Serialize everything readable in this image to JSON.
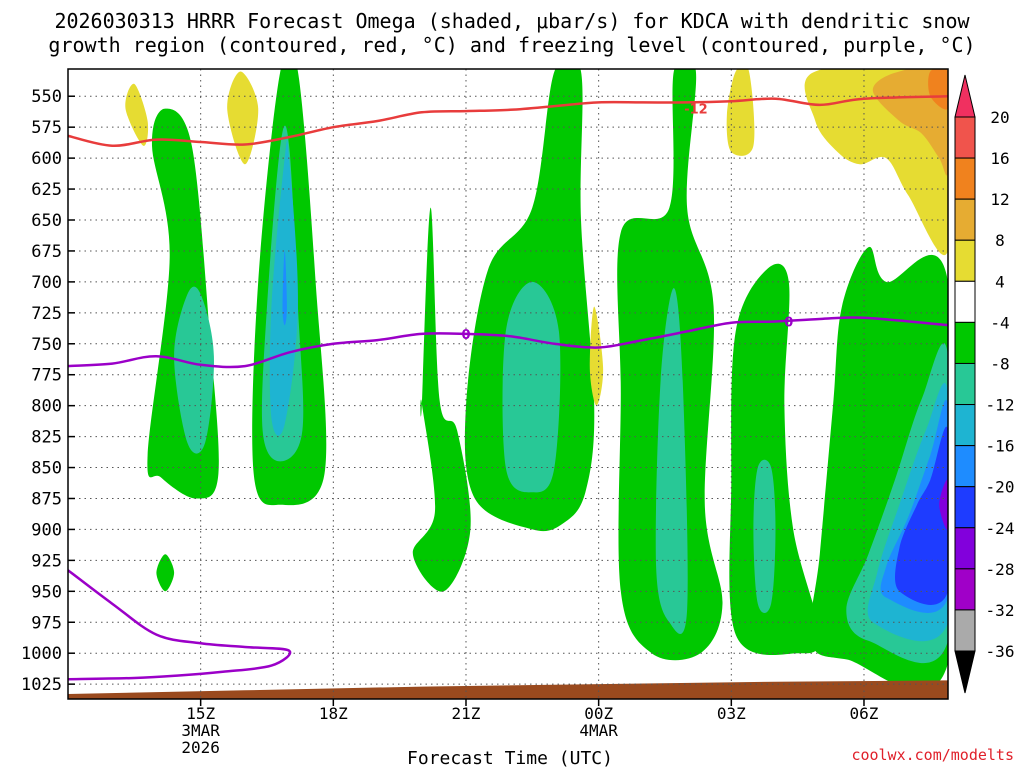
{
  "chart_data": {
    "type": "heatmap",
    "title_line1": "2026030313 HRRR Forecast Omega (shaded, μbar/s) for KDCA with dendritic snow",
    "title_line2": "growth region (contoured, red, °C) and freezing level (contoured, purple, °C)",
    "xlabel": "Forecast Time (UTC)",
    "x_ticks": [
      {
        "label": "15Z",
        "sub1": "3MAR",
        "sub2": "2026",
        "hour": 15
      },
      {
        "label": "18Z",
        "sub1": "",
        "sub2": "",
        "hour": 18
      },
      {
        "label": "21Z",
        "sub1": "",
        "sub2": "",
        "hour": 21
      },
      {
        "label": "00Z",
        "sub1": "4MAR",
        "sub2": "",
        "hour": 24
      },
      {
        "label": "03Z",
        "sub1": "",
        "sub2": "",
        "hour": 27
      },
      {
        "label": "06Z",
        "sub1": "",
        "sub2": "",
        "hour": 30
      }
    ],
    "x_range_hours": [
      12,
      31.9
    ],
    "y_ticks": [
      550,
      575,
      600,
      625,
      650,
      675,
      700,
      725,
      750,
      775,
      800,
      825,
      850,
      875,
      900,
      925,
      950,
      975,
      1000,
      1025
    ],
    "y_range_hpa": [
      528,
      1037
    ],
    "colorbar_ticks": [
      "20",
      "16",
      "12",
      "8",
      "4",
      "-4",
      "-8",
      "-12",
      "-16",
      "-20",
      "-24",
      "-28",
      "-32",
      "-36"
    ],
    "colorbar_colors": [
      "#f03060",
      "#f0544c",
      "#f0821e",
      "#e6ac32",
      "#e6dc32",
      "#ffffff",
      "#00c800",
      "#28c896",
      "#1eb4d2",
      "#1e8cff",
      "#1e3cff",
      "#8200dc",
      "#a000c8",
      "#aaaaaa",
      "#000000"
    ],
    "levels": [
      {
        "name": "neg4",
        "color": "#00c800",
        "regions": [
          [
            [
              14.2,
              560
            ],
            [
              14.8,
              590
            ],
            [
              15.2,
              740
            ],
            [
              15.4,
              855
            ],
            [
              14.9,
              875
            ],
            [
              14.1,
              858
            ],
            [
              13.8,
              840
            ],
            [
              14.3,
              680
            ],
            [
              13.9,
              590
            ]
          ],
          [
            [
              16.8,
              530
            ],
            [
              16.3,
              700
            ],
            [
              16.2,
              855
            ],
            [
              16.8,
              880
            ],
            [
              17.8,
              855
            ],
            [
              17.6,
              700
            ],
            [
              17.2,
              530
            ]
          ],
          [
            [
              20.0,
              798
            ],
            [
              20.3,
              885
            ],
            [
              19.8,
              920
            ],
            [
              20.5,
              950
            ],
            [
              21.1,
              900
            ],
            [
              20.8,
              820
            ],
            [
              20.4,
              795
            ],
            [
              20.2,
              640
            ],
            [
              20.0,
              800
            ]
          ],
          [
            [
              23.0,
              530
            ],
            [
              22.5,
              640
            ],
            [
              21.5,
              690
            ],
            [
              21.0,
              800
            ],
            [
              21.2,
              875
            ],
            [
              22.5,
              900
            ],
            [
              23.2,
              895
            ],
            [
              23.7,
              870
            ],
            [
              23.9,
              800
            ],
            [
              23.6,
              650
            ],
            [
              23.6,
              530
            ]
          ],
          [
            [
              25.7,
              530
            ],
            [
              25.6,
              640
            ],
            [
              24.5,
              660
            ],
            [
              24.5,
              790
            ],
            [
              24.5,
              950
            ],
            [
              25.2,
              1000
            ],
            [
              26.3,
              1000
            ],
            [
              26.8,
              960
            ],
            [
              26.4,
              880
            ],
            [
              26.6,
              720
            ],
            [
              26.0,
              640
            ],
            [
              26.2,
              530
            ]
          ],
          [
            [
              27.8,
              690
            ],
            [
              27.1,
              740
            ],
            [
              27.0,
              860
            ],
            [
              27.1,
              985
            ],
            [
              28.5,
              1000
            ],
            [
              29.0,
              985
            ],
            [
              28.4,
              900
            ],
            [
              28.2,
              800
            ],
            [
              28.3,
              700
            ]
          ],
          [
            [
              30.1,
              672
            ],
            [
              29.5,
              720
            ],
            [
              29.3,
              800
            ],
            [
              29.0,
              920
            ],
            [
              28.8,
              990
            ],
            [
              29.6,
              1005
            ],
            [
              31.9,
              1008
            ],
            [
              31.9,
              700
            ],
            [
              30.5,
              700
            ]
          ],
          [
            [
              14.2,
              920
            ],
            [
              14.0,
              935
            ],
            [
              14.2,
              950
            ],
            [
              14.4,
              935
            ]
          ]
        ]
      },
      {
        "name": "neg8",
        "color": "#28c896",
        "regions": [
          [
            [
              14.7,
              710
            ],
            [
              14.4,
              760
            ],
            [
              14.7,
              830
            ],
            [
              15.1,
              830
            ],
            [
              15.3,
              760
            ],
            [
              15.0,
              710
            ]
          ],
          [
            [
              16.8,
              590
            ],
            [
              16.5,
              720
            ],
            [
              16.4,
              820
            ],
            [
              16.8,
              845
            ],
            [
              17.3,
              820
            ],
            [
              17.2,
              720
            ],
            [
              17.0,
              590
            ]
          ],
          [
            [
              22.5,
              700
            ],
            [
              21.9,
              740
            ],
            [
              21.9,
              850
            ],
            [
              22.5,
              870
            ],
            [
              23.0,
              850
            ],
            [
              23.1,
              740
            ]
          ],
          [
            [
              25.7,
              705
            ],
            [
              25.4,
              780
            ],
            [
              25.3,
              930
            ],
            [
              25.6,
              975
            ],
            [
              26.0,
              965
            ],
            [
              25.9,
              780
            ]
          ],
          [
            [
              27.6,
              850
            ],
            [
              27.5,
              900
            ],
            [
              27.6,
              960
            ],
            [
              27.9,
              960
            ],
            [
              28.0,
              900
            ],
            [
              27.9,
              850
            ]
          ],
          [
            [
              31.9,
              760
            ],
            [
              31.3,
              795
            ],
            [
              30.7,
              860
            ],
            [
              30.1,
              920
            ],
            [
              29.6,
              965
            ],
            [
              30.1,
              990
            ],
            [
              31.9,
              990
            ]
          ]
        ]
      },
      {
        "name": "neg12",
        "color": "#1eb4d2",
        "regions": [
          [
            [
              16.9,
              600
            ],
            [
              16.6,
              720
            ],
            [
              16.6,
              810
            ],
            [
              16.9,
              815
            ],
            [
              17.2,
              720
            ],
            [
              17.0,
              600
            ]
          ],
          [
            [
              31.9,
              790
            ],
            [
              31.4,
              820
            ],
            [
              30.8,
              880
            ],
            [
              30.3,
              935
            ],
            [
              30.2,
              975
            ],
            [
              31.9,
              975
            ]
          ]
        ]
      },
      {
        "name": "neg16",
        "color": "#1e8cff",
        "regions": [
          [
            [
              16.9,
              675
            ],
            [
              16.85,
              720
            ],
            [
              16.9,
              735
            ],
            [
              16.95,
              720
            ]
          ],
          [
            [
              31.9,
              800
            ],
            [
              31.5,
              840
            ],
            [
              31.0,
              890
            ],
            [
              30.5,
              930
            ],
            [
              30.5,
              955
            ],
            [
              31.9,
              955
            ]
          ]
        ]
      },
      {
        "name": "neg20",
        "color": "#1e3cff",
        "regions": [
          [
            [
              31.9,
              820
            ],
            [
              31.5,
              860
            ],
            [
              31.2,
              880
            ],
            [
              30.8,
              915
            ],
            [
              30.8,
              950
            ],
            [
              31.9,
              950
            ]
          ]
        ]
      },
      {
        "name": "neg24",
        "color": "#8200dc",
        "regions": [
          [
            [
              31.9,
              860
            ],
            [
              31.7,
              880
            ],
            [
              31.9,
              900
            ]
          ]
        ]
      },
      {
        "name": "pos4",
        "color": "#e6dc32",
        "regions": [
          [
            [
              13.5,
              540
            ],
            [
              13.3,
              560
            ],
            [
              13.7,
              590
            ],
            [
              13.8,
              570
            ]
          ],
          [
            [
              15.9,
              530
            ],
            [
              15.6,
              560
            ],
            [
              16.0,
              605
            ],
            [
              16.3,
              560
            ]
          ],
          [
            [
              23.9,
              720
            ],
            [
              23.8,
              770
            ],
            [
              23.95,
              800
            ],
            [
              24.1,
              770
            ]
          ],
          [
            [
              27.1,
              530
            ],
            [
              26.9,
              565
            ],
            [
              27.0,
              595
            ],
            [
              27.5,
              590
            ],
            [
              27.4,
              530
            ]
          ],
          [
            [
              28.9,
              530
            ],
            [
              28.9,
              570
            ],
            [
              29.4,
              595
            ],
            [
              29.9,
              605
            ],
            [
              30.5,
              600
            ],
            [
              31.0,
              630
            ],
            [
              31.9,
              675
            ],
            [
              31.9,
              530
            ]
          ]
        ]
      },
      {
        "name": "pos8",
        "color": "#e6ac32",
        "regions": [
          [
            [
              30.8,
              530
            ],
            [
              30.2,
              545
            ],
            [
              30.8,
              570
            ],
            [
              31.3,
              580
            ],
            [
              31.7,
              600
            ],
            [
              31.9,
              610
            ],
            [
              31.9,
              530
            ]
          ]
        ]
      },
      {
        "name": "pos12",
        "color": "#f0821e",
        "regions": [
          [
            [
              31.5,
              530
            ],
            [
              31.5,
              550
            ],
            [
              31.9,
              560
            ],
            [
              31.9,
              530
            ]
          ]
        ]
      }
    ],
    "dendritic_contour": {
      "label": "-12",
      "label_at": [
        26.2,
        560
      ],
      "color": "#e83c3c",
      "points": [
        [
          12,
          582
        ],
        [
          13,
          590
        ],
        [
          14,
          585
        ],
        [
          15,
          587
        ],
        [
          16,
          589
        ],
        [
          17,
          583
        ],
        [
          18,
          575
        ],
        [
          19,
          570
        ],
        [
          20,
          563
        ],
        [
          21,
          562
        ],
        [
          22,
          561
        ],
        [
          23,
          558
        ],
        [
          24,
          555
        ],
        [
          25,
          555
        ],
        [
          26,
          555
        ],
        [
          27,
          554
        ],
        [
          28,
          552
        ],
        [
          29,
          557
        ],
        [
          30,
          552
        ],
        [
          31.9,
          550
        ]
      ]
    },
    "freezing_level_contours": [
      {
        "label": "0",
        "label_at": [
          21.0,
          742
        ],
        "color": "#9b00c8",
        "points": [
          [
            12,
            768
          ],
          [
            13,
            766
          ],
          [
            14,
            760
          ],
          [
            15,
            767
          ],
          [
            16,
            768
          ],
          [
            17,
            757
          ],
          [
            18,
            750
          ],
          [
            19,
            747
          ],
          [
            20,
            742
          ],
          [
            21,
            742
          ],
          [
            22,
            744
          ],
          [
            23,
            750
          ],
          [
            24,
            753
          ],
          [
            25,
            747
          ],
          [
            26,
            740
          ],
          [
            27,
            733
          ],
          [
            28,
            732
          ],
          [
            29,
            730
          ],
          [
            30,
            729
          ],
          [
            31.9,
            735
          ]
        ]
      },
      {
        "label": "",
        "label_at": null,
        "color": "#9b00c8",
        "points": [
          [
            12,
            933
          ],
          [
            13,
            960
          ],
          [
            14,
            985
          ],
          [
            15,
            992
          ],
          [
            16,
            995
          ],
          [
            17,
            998
          ],
          [
            16.6,
            1010
          ],
          [
            15.5,
            1015
          ],
          [
            14.5,
            1018
          ],
          [
            13.5,
            1020
          ],
          [
            12,
            1021
          ]
        ]
      }
    ],
    "terrain": {
      "color": "#9a4a1e",
      "points": [
        [
          12,
          1033
        ],
        [
          16,
          1030
        ],
        [
          20,
          1027
        ],
        [
          24,
          1025
        ],
        [
          28,
          1023
        ],
        [
          31.9,
          1022
        ]
      ]
    }
  },
  "watermark": "coolwx.com/modelts"
}
